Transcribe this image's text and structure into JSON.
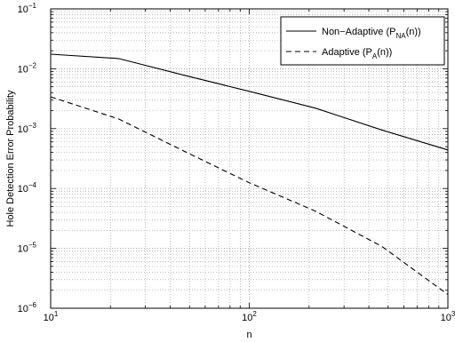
{
  "chart_data": {
    "type": "line",
    "xscale": "log",
    "yscale": "log",
    "xlim": [
      10,
      1000
    ],
    "ylim": [
      1e-06,
      0.1
    ],
    "grid": true,
    "legend_position": "top-right",
    "xlabel": "n",
    "ylabel": "Hole Detection Error Probability",
    "x_ticks": [
      {
        "value": 10,
        "base": "10",
        "exp": "1"
      },
      {
        "value": 100,
        "base": "10",
        "exp": "2"
      },
      {
        "value": 1000,
        "base": "10",
        "exp": "3"
      }
    ],
    "y_ticks": [
      {
        "value": 1e-06,
        "base": "10",
        "exp": "−6"
      },
      {
        "value": 1e-05,
        "base": "10",
        "exp": "−5"
      },
      {
        "value": 0.0001,
        "base": "10",
        "exp": "−4"
      },
      {
        "value": 0.001,
        "base": "10",
        "exp": "−3"
      },
      {
        "value": 0.01,
        "base": "10",
        "exp": "−2"
      },
      {
        "value": 0.1,
        "base": "10",
        "exp": "−1"
      }
    ],
    "series": [
      {
        "name": "Non−Adaptive (PNA(n))",
        "legend_main": "Non−Adaptive (P",
        "legend_sub": "NA",
        "legend_tail": "(n))",
        "style": "solid",
        "color": "#000000",
        "points": [
          [
            10,
            0.0175
          ],
          [
            22,
            0.0148
          ],
          [
            47,
            0.0078
          ],
          [
            100,
            0.0042
          ],
          [
            215,
            0.0022
          ],
          [
            464,
            0.00095
          ],
          [
            1000,
            0.00044
          ]
        ]
      },
      {
        "name": "Adaptive (PA(n))",
        "legend_main": "Adaptive (P",
        "legend_sub": "A",
        "legend_tail": "(n))",
        "style": "dashed",
        "color": "#000000",
        "points": [
          [
            10,
            0.0034
          ],
          [
            22,
            0.00145
          ],
          [
            47,
            0.00042
          ],
          [
            100,
            0.000125
          ],
          [
            215,
            4.2e-05
          ],
          [
            464,
            1.08e-05
          ],
          [
            1000,
            1.7e-06
          ]
        ]
      }
    ]
  }
}
